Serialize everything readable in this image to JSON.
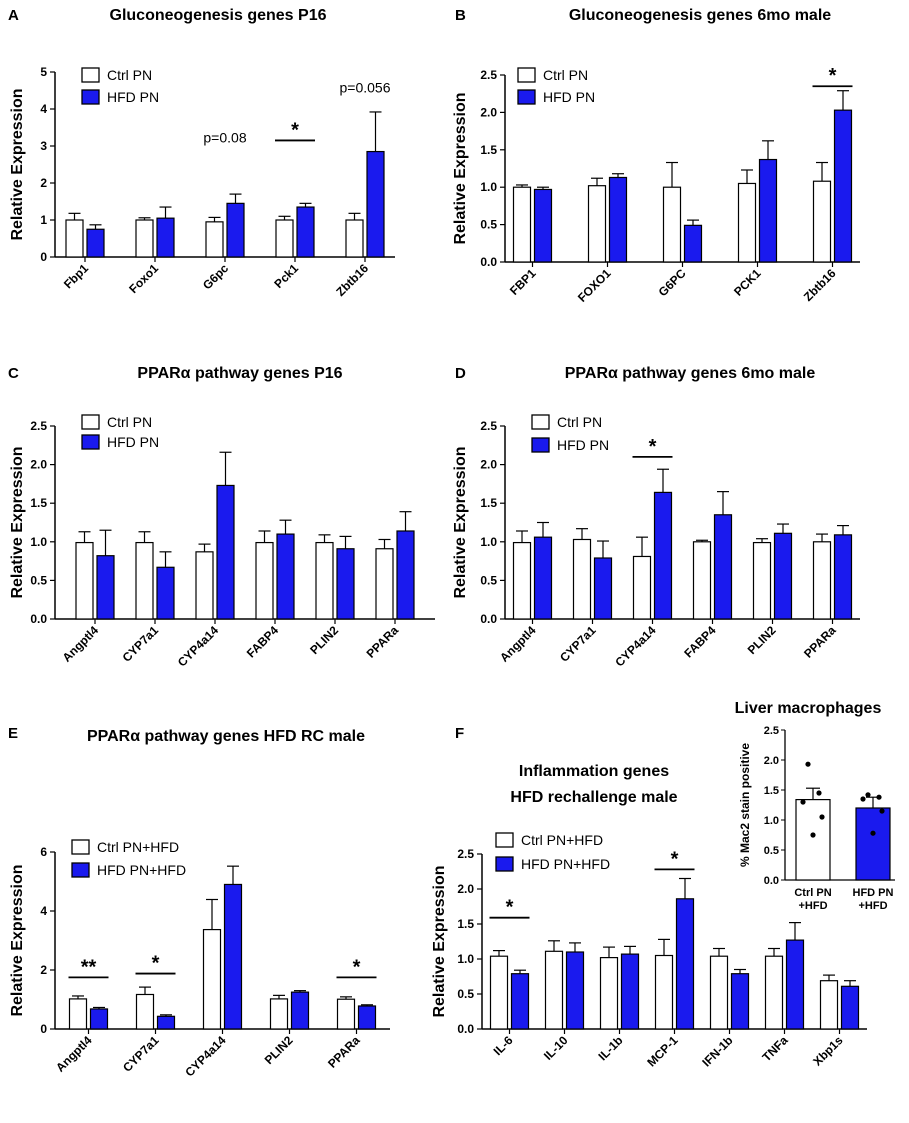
{
  "colors": {
    "ctrl": "#ffffff",
    "hfd": "#1a1aee",
    "stroke": "#000000"
  },
  "chart_data": [
    {
      "id": "A",
      "label": "A",
      "type": "bar",
      "title": "Gluconeogenesis genes P16",
      "ylabel": "Relative Expression",
      "ylim": [
        0,
        5
      ],
      "yticks": [
        "0",
        "1",
        "2",
        "3",
        "4",
        "5"
      ],
      "ytick_values": [
        0,
        1,
        2,
        3,
        4,
        5
      ],
      "categories": [
        "Fbp1",
        "Foxo1",
        "G6pc",
        "Pck1",
        "Zbtb16"
      ],
      "series": [
        {
          "name": "Ctrl PN",
          "values": [
            1.0,
            1.0,
            0.95,
            1.0,
            1.0
          ],
          "errors": [
            0.18,
            0.06,
            0.12,
            0.1,
            0.18
          ]
        },
        {
          "name": "HFD PN",
          "values": [
            0.75,
            1.05,
            1.45,
            1.35,
            2.85
          ],
          "errors": [
            0.12,
            0.3,
            0.25,
            0.1,
            1.07
          ]
        }
      ],
      "legend": [
        "Ctrl PN",
        "HFD PN"
      ],
      "annotations": [
        {
          "text": "p=0.08",
          "kind": "p",
          "cat": 2,
          "y": 3.1
        },
        {
          "text": "*",
          "kind": "star",
          "cat": 3,
          "y": 3.15
        },
        {
          "text": "p=0.056",
          "kind": "p",
          "cat": 4,
          "y": 4.45
        }
      ]
    },
    {
      "id": "B",
      "label": "B",
      "type": "bar",
      "title": "Gluconeogenesis genes 6mo male",
      "ylabel": "Relative Expression",
      "ylim": [
        0,
        2.5
      ],
      "yticks": [
        "0.0",
        "0.5",
        "1.0",
        "1.5",
        "2.0",
        "2.5"
      ],
      "ytick_values": [
        0,
        0.5,
        1,
        1.5,
        2,
        2.5
      ],
      "categories": [
        "FBP1",
        "FOXO1",
        "G6PC",
        "PCK1",
        "Zbtb16"
      ],
      "series": [
        {
          "name": "Ctrl PN",
          "values": [
            1.0,
            1.02,
            1.0,
            1.05,
            1.08
          ],
          "errors": [
            0.03,
            0.1,
            0.33,
            0.18,
            0.25
          ]
        },
        {
          "name": "HFD PN",
          "values": [
            0.97,
            1.13,
            0.49,
            1.37,
            2.03
          ],
          "errors": [
            0.03,
            0.05,
            0.07,
            0.25,
            0.26
          ]
        }
      ],
      "legend": [
        "Ctrl PN",
        "HFD PN"
      ],
      "annotations": [
        {
          "text": "*",
          "kind": "star",
          "cat": 4,
          "y": 2.35
        }
      ]
    },
    {
      "id": "C",
      "label": "C",
      "type": "bar",
      "title": "PPARα pathway genes P16",
      "ylabel": "Relative Expression",
      "ylim": [
        0,
        2.5
      ],
      "yticks": [
        "0.0",
        "0.5",
        "1.0",
        "1.5",
        "2.0",
        "2.5"
      ],
      "ytick_values": [
        0,
        0.5,
        1,
        1.5,
        2,
        2.5
      ],
      "categories": [
        "Angptl4",
        "CYP7a1",
        "CYP4a14",
        "FABP4",
        "PLIN2",
        "PPARa"
      ],
      "series": [
        {
          "name": "Ctrl PN",
          "values": [
            0.99,
            0.99,
            0.87,
            0.99,
            0.99,
            0.91
          ],
          "errors": [
            0.14,
            0.14,
            0.1,
            0.15,
            0.1,
            0.12
          ]
        },
        {
          "name": "HFD PN",
          "values": [
            0.82,
            0.67,
            1.73,
            1.1,
            0.91,
            1.14
          ],
          "errors": [
            0.33,
            0.2,
            0.43,
            0.18,
            0.16,
            0.25
          ]
        }
      ],
      "legend": [
        "Ctrl PN",
        "HFD PN"
      ],
      "annotations": []
    },
    {
      "id": "D",
      "label": "D",
      "type": "bar",
      "title": "PPARα pathway genes 6mo male",
      "ylabel": "Relative Expression",
      "ylim": [
        0,
        2.5
      ],
      "yticks": [
        "0.0",
        "0.5",
        "1.0",
        "1.5",
        "2.0",
        "2.5"
      ],
      "ytick_values": [
        0,
        0.5,
        1,
        1.5,
        2,
        2.5
      ],
      "categories": [
        "Angptl4",
        "CYP7a1",
        "CYP4a14",
        "FABP4",
        "PLIN2",
        "PPARa"
      ],
      "series": [
        {
          "name": "Ctrl PN",
          "values": [
            0.99,
            1.03,
            0.81,
            1.0,
            0.99,
            1.0
          ],
          "errors": [
            0.15,
            0.14,
            0.25,
            0.02,
            0.05,
            0.1
          ]
        },
        {
          "name": "HFD PN",
          "values": [
            1.06,
            0.79,
            1.64,
            1.35,
            1.11,
            1.09
          ],
          "errors": [
            0.19,
            0.22,
            0.3,
            0.3,
            0.12,
            0.12
          ]
        }
      ],
      "legend": [
        "Ctrl PN",
        "HFD PN"
      ],
      "annotations": [
        {
          "text": "*",
          "kind": "star",
          "cat": 2,
          "y": 2.1
        }
      ]
    },
    {
      "id": "E",
      "label": "E",
      "type": "bar",
      "title": "PPARα pathway genes HFD RC male",
      "ylabel": "Relative Expression",
      "ylim": [
        0,
        6
      ],
      "yticks": [
        "0",
        "2",
        "4",
        "6"
      ],
      "ytick_values": [
        0,
        2,
        4,
        6
      ],
      "categories": [
        "Angptl4",
        "CYP7a1",
        "CYP4a14",
        "PLIN2",
        "PPARa"
      ],
      "series": [
        {
          "name": "Ctrl PN+HFD",
          "values": [
            1.02,
            1.17,
            3.37,
            1.02,
            1.01
          ],
          "errors": [
            0.1,
            0.25,
            1.02,
            0.12,
            0.08
          ]
        },
        {
          "name": "HFD PN+HFD",
          "values": [
            0.68,
            0.43,
            4.9,
            1.25,
            0.78
          ],
          "errors": [
            0.05,
            0.05,
            0.62,
            0.05,
            0.04
          ]
        }
      ],
      "legend": [
        "Ctrl PN+HFD",
        "HFD PN+HFD"
      ],
      "annotations": [
        {
          "text": "**",
          "kind": "star",
          "cat": 0,
          "y": 1.75
        },
        {
          "text": "*",
          "kind": "star",
          "cat": 1,
          "y": 1.88
        },
        {
          "text": "*",
          "kind": "star",
          "cat": 4,
          "y": 1.75
        }
      ]
    },
    {
      "id": "F",
      "label": "F",
      "type": "bar",
      "title": "Inflammation genes",
      "title2": "HFD rechallenge male",
      "ylabel": "Relative Expression",
      "ylim": [
        0,
        2.5
      ],
      "yticks": [
        "0.0",
        "0.5",
        "1.0",
        "1.5",
        "2.0",
        "2.5"
      ],
      "ytick_values": [
        0,
        0.5,
        1,
        1.5,
        2,
        2.5
      ],
      "categories": [
        "IL-6",
        "IL-10",
        "IL-1b",
        "MCP-1",
        "IFN-1b",
        "TNFa",
        "Xbp1s"
      ],
      "series": [
        {
          "name": "Ctrl PN+HFD",
          "values": [
            1.04,
            1.11,
            1.02,
            1.05,
            1.04,
            1.04,
            0.69
          ],
          "errors": [
            0.08,
            0.15,
            0.15,
            0.23,
            0.11,
            0.11,
            0.08
          ]
        },
        {
          "name": "HFD PN+HFD",
          "values": [
            0.79,
            1.1,
            1.07,
            1.86,
            0.79,
            1.27,
            0.61
          ],
          "errors": [
            0.05,
            0.13,
            0.11,
            0.29,
            0.06,
            0.25,
            0.08
          ]
        }
      ],
      "legend": [
        "Ctrl PN+HFD",
        "HFD PN+HFD"
      ],
      "annotations": [
        {
          "text": "*",
          "kind": "star",
          "cat": 0,
          "y": 1.59
        },
        {
          "text": "*",
          "kind": "star",
          "cat": 3,
          "y": 2.28
        }
      ]
    },
    {
      "id": "F-inset",
      "type": "bar",
      "title": "Liver macrophages",
      "ylabel": "% Mac2 stain positive",
      "ylim": [
        0,
        2.5
      ],
      "yticks": [
        "0.0",
        "0.5",
        "1.0",
        "1.5",
        "2.0",
        "2.5"
      ],
      "ytick_values": [
        0,
        0.5,
        1,
        1.5,
        2,
        2.5
      ],
      "categories": [
        [
          "Ctrl PN",
          "+HFD"
        ],
        [
          "HFD PN",
          "+HFD"
        ]
      ],
      "values": [
        1.34,
        1.2
      ],
      "errors": [
        0.19,
        0.18
      ],
      "points": [
        [
          1.93,
          1.45,
          1.3,
          1.05,
          0.75
        ],
        [
          1.42,
          1.38,
          1.35,
          1.15,
          0.78
        ]
      ]
    }
  ]
}
